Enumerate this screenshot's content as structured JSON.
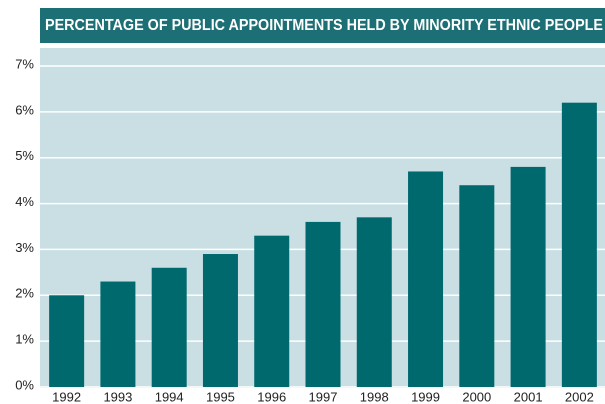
{
  "chart_data": {
    "type": "bar",
    "title": "PERCENTAGE OF PUBLIC APPOINTMENTS HELD BY MINORITY ETHNIC PEOPLE",
    "categories": [
      "1992",
      "1993",
      "1994",
      "1995",
      "1996",
      "1997",
      "1998",
      "1999",
      "2000",
      "2001",
      "2002"
    ],
    "values": [
      2.0,
      2.3,
      2.6,
      2.9,
      3.3,
      3.6,
      3.7,
      4.7,
      4.4,
      4.8,
      6.2
    ],
    "color": "#00696e",
    "ylim": [
      0,
      7
    ],
    "yticks": [
      {
        "value": 0,
        "label": "0%"
      },
      {
        "value": 1,
        "label": "1%"
      },
      {
        "value": 2,
        "label": "2%"
      },
      {
        "value": 3,
        "label": "3%"
      },
      {
        "value": 4,
        "label": "4%"
      },
      {
        "value": 5,
        "label": "5%"
      },
      {
        "value": 6,
        "label": "6%"
      },
      {
        "value": 7,
        "label": "7%"
      }
    ],
    "grid": true
  }
}
